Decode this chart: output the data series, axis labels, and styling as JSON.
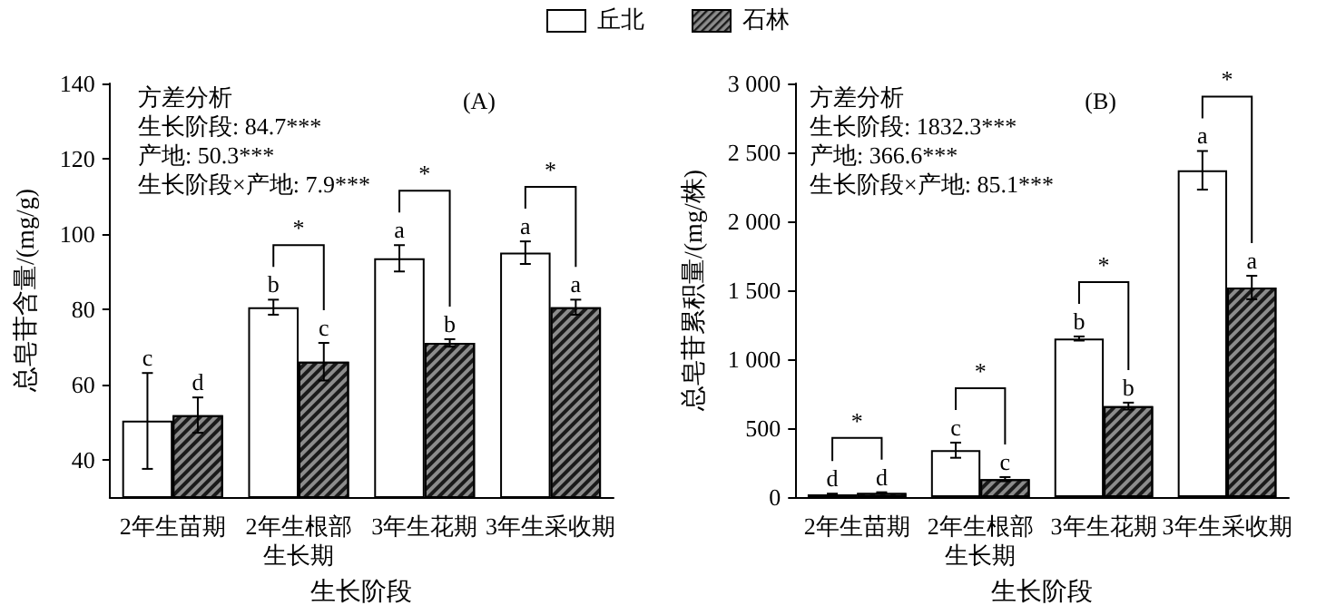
{
  "chart_data": [
    {
      "type": "bar",
      "title": "(A)",
      "xlabel": "生长阶段",
      "ylabel": "总皂苷含量/(mg/g)",
      "categories": [
        "2年生苗期",
        "2年生根部生长期",
        "3年生花期",
        "3年生采收期"
      ],
      "series": [
        {
          "name": "丘北",
          "color": "#ffffff",
          "values": [
            50.3,
            80.5,
            93.5,
            95
          ],
          "errors": [
            [
              37.5,
              63
            ],
            2,
            3.5,
            3
          ],
          "value_labels": [
            "c",
            "b",
            "a",
            "a"
          ]
        },
        {
          "name": "石林",
          "color": "#8c8c8c",
          "values": [
            51.8,
            66,
            71,
            80.5
          ],
          "errors": [
            4.7,
            5,
            1,
            2
          ],
          "value_labels": [
            "d",
            "c",
            "b",
            "a"
          ]
        }
      ],
      "ylim": [
        30,
        140
      ],
      "yticks": [
        40,
        60,
        80,
        100,
        120,
        140
      ],
      "grid": false,
      "legend": "top",
      "annotations": [
        "方差分析",
        "生长阶段: 84.7***",
        "产地: 50.3***",
        "生长阶段×产地: 7.9***",
        "*",
        "*",
        "*"
      ]
    },
    {
      "type": "bar",
      "title": "(B)",
      "xlabel": "生长阶段",
      "ylabel": "总皂苷累积量/(mg/株)",
      "categories": [
        "2年生苗期",
        "2年生根部生长期",
        "3年生花期",
        "3年生采收期"
      ],
      "series": [
        {
          "color": "#ffffff",
          "values": [
            20,
            340,
            1150,
            2370
          ],
          "errors": [
            5,
            55,
            15,
            140
          ],
          "value_labels": [
            "d",
            "c",
            "b",
            "a"
          ]
        },
        {
          "color": "#8c8c8c",
          "values": [
            30,
            130,
            660,
            1520
          ],
          "errors": [
            5,
            15,
            25,
            85
          ],
          "value_labels": [
            "d",
            "c",
            "b",
            "a"
          ]
        }
      ],
      "ylim": [
        0,
        3000
      ],
      "yticks": [
        0,
        500,
        {
          "value": 1000,
          "label": "1 000"
        },
        {
          "value": 1500,
          "label": "1 500"
        },
        {
          "value": 2000,
          "label": "2 000"
        },
        {
          "value": 2500,
          "label": "2 500"
        },
        {
          "value": 3000,
          "label": "3 000"
        }
      ],
      "grid": false,
      "annotations": [
        "方差分析",
        "生长阶段: 1832.3***",
        "产地: 366.6***",
        "生长阶段×产地: 85.1***",
        "*",
        "*",
        "*",
        "*"
      ]
    }
  ]
}
